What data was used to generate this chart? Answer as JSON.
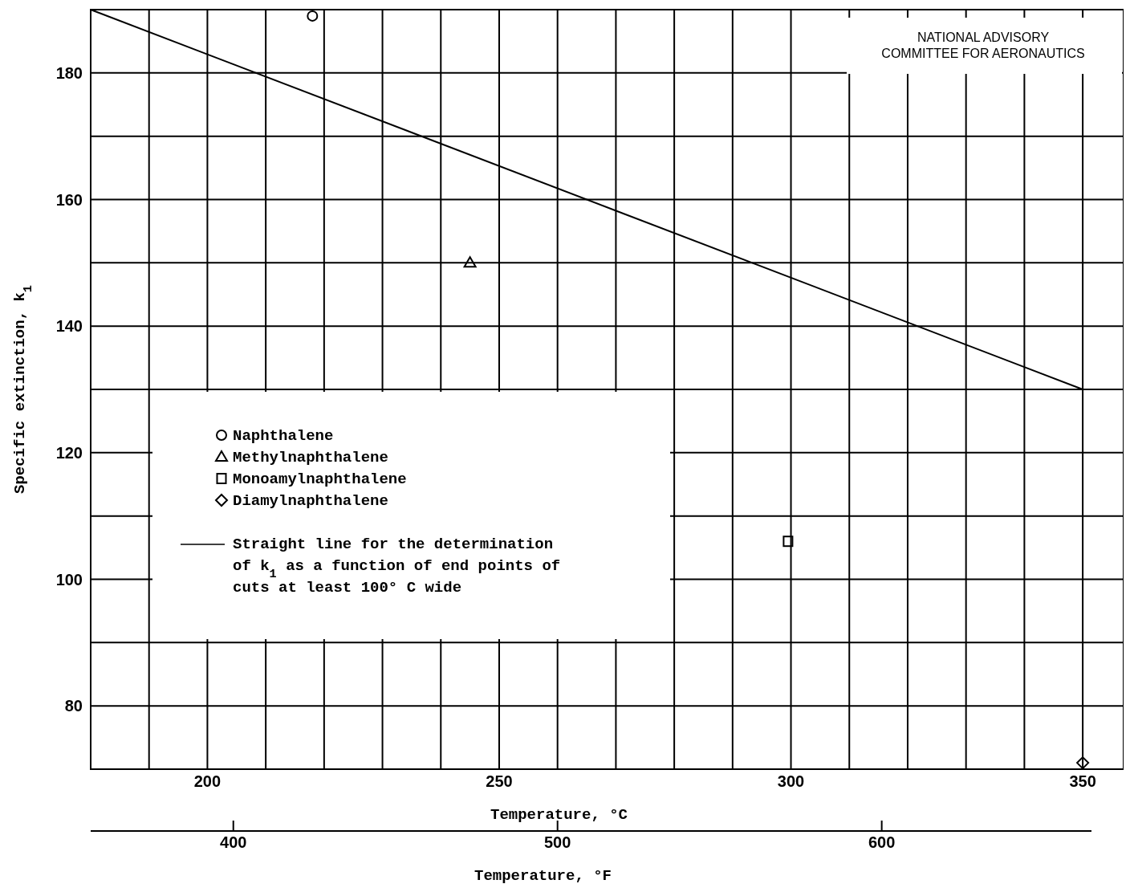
{
  "chart_data": {
    "type": "scatter",
    "xlabel": "Temperature, °C",
    "x2label": "Temperature, °F",
    "ylabel": "Specific extinction, k$_{1}$",
    "xlim": [
      180,
      357
    ],
    "xticks": [
      {
        "value": 180,
        "label": null
      },
      {
        "value": 190,
        "label": null
      },
      200,
      {
        "value": 210,
        "label": null
      },
      {
        "value": 220,
        "label": null
      },
      {
        "value": 230,
        "label": null
      },
      {
        "value": 240,
        "label": null
      },
      250,
      {
        "value": 260,
        "label": null
      },
      {
        "value": 270,
        "label": null
      },
      {
        "value": 280,
        "label": null
      },
      {
        "value": 290,
        "label": null
      },
      300,
      {
        "value": 310,
        "label": null
      },
      {
        "value": 320,
        "label": null
      },
      {
        "value": 330,
        "label": null
      },
      {
        "value": 340,
        "label": null
      },
      350
    ],
    "x2lim": [
      356,
      674.6
    ],
    "x2ticks": [
      400,
      500,
      600
    ],
    "ylim": [
      70,
      190
    ],
    "yticks": [
      {
        "value": 70,
        "label": null
      },
      80,
      {
        "value": 90,
        "label": null
      },
      100,
      {
        "value": 110,
        "label": null
      },
      120,
      {
        "value": 130,
        "label": null
      },
      140,
      {
        "value": 150,
        "label": null
      },
      160,
      {
        "value": 170,
        "label": null
      },
      180,
      {
        "value": 190,
        "label": null
      }
    ],
    "grid": true,
    "legend": "left",
    "series": [
      {
        "name": "Naphthalene",
        "color": "#000000",
        "marker": "circle",
        "x": [
          218
        ],
        "values": [
          189
        ]
      },
      {
        "name": "Methylnaphthalene",
        "color": "#000000",
        "marker": "triangle",
        "x": [
          245
        ],
        "values": [
          150
        ]
      },
      {
        "name": "Monoamylnaphthalene",
        "color": "#000000",
        "marker": "square",
        "x": [
          299.5
        ],
        "values": [
          106
        ]
      },
      {
        "name": "Diamylnaphthalene",
        "color": "#000000",
        "marker": "diamond",
        "x": [
          350
        ],
        "values": [
          71
        ]
      },
      {
        "name": "Straight line for the determination of k$_{1}$ as a function of end points of cuts at least 100° C wide",
        "type": "line",
        "color": "#000000",
        "marker": "none",
        "x": [
          180,
          350
        ],
        "values": [
          190,
          130
        ]
      }
    ],
    "annotations": [
      "NATIONAL ADVISORY COMMITTEE FOR AERONAUTICS"
    ]
  }
}
